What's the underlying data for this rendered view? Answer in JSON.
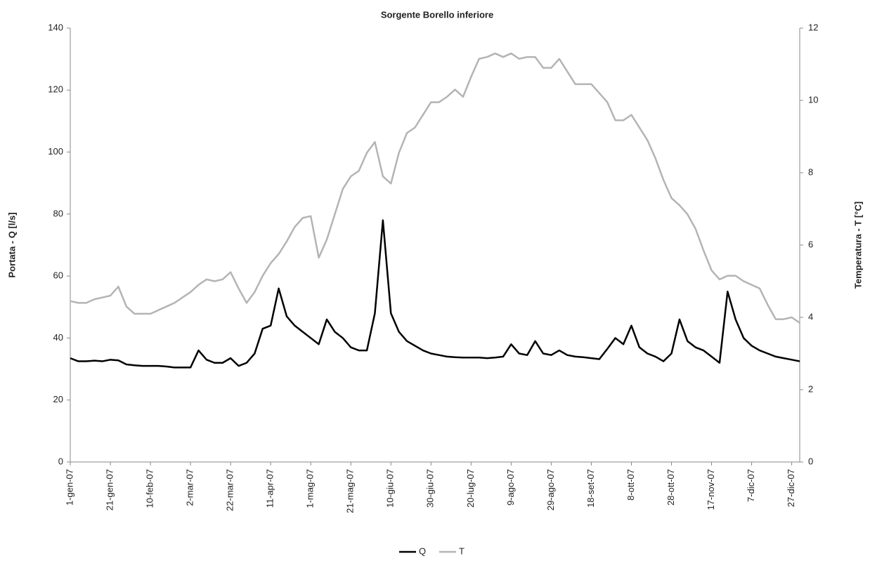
{
  "chart_data": {
    "type": "line",
    "title": "Sorgente Borello inferiore",
    "ylabel": "Portata - Q  [l/s]",
    "y2label": "Temperatura - T [°C]",
    "categories": [
      "1-gen-07",
      null,
      null,
      null,
      null,
      "21-gen-07",
      null,
      null,
      null,
      null,
      "10-feb-07",
      null,
      null,
      null,
      null,
      "2-mar-07",
      null,
      null,
      null,
      null,
      "22-mar-07",
      null,
      null,
      null,
      null,
      "11-apr-07",
      null,
      null,
      null,
      null,
      "1-mag-07",
      null,
      null,
      null,
      null,
      "21-mag-07",
      null,
      null,
      null,
      null,
      "10-giu-07",
      null,
      null,
      null,
      null,
      "30-giu-07",
      null,
      null,
      null,
      null,
      "20-lug-07",
      null,
      null,
      null,
      null,
      "9-ago-07",
      null,
      null,
      null,
      null,
      "29-ago-07",
      null,
      null,
      null,
      null,
      "18-set-07",
      null,
      null,
      null,
      null,
      "8-ott-07",
      null,
      null,
      null,
      null,
      "28-ott-07",
      null,
      null,
      null,
      null,
      "17-nov-07",
      null,
      null,
      null,
      null,
      "7-dic-07",
      null,
      null,
      null,
      null,
      "27-dic-07",
      null
    ],
    "series": [
      {
        "name": "Q",
        "color": "#000000",
        "axis": "y",
        "values": [
          33.5,
          32.5,
          32.5,
          32.7,
          32.5,
          33,
          32.8,
          31.5,
          31.2,
          31,
          31,
          31,
          30.8,
          30.5,
          30.5,
          30.5,
          36,
          33,
          32,
          32,
          33.5,
          31,
          32,
          35,
          43,
          44,
          56,
          47,
          44,
          42,
          40,
          38,
          46,
          42,
          40,
          37,
          36,
          36,
          48,
          78,
          48,
          42,
          39,
          37.5,
          36,
          35,
          34.5,
          34,
          33.8,
          33.7,
          33.7,
          33.7,
          33.5,
          33.7,
          34,
          38,
          35,
          34.5,
          39,
          35,
          34.5,
          36,
          34.5,
          34,
          33.8,
          33.5,
          33.2,
          36.5,
          40,
          38,
          44,
          37,
          35,
          34,
          32.5,
          35,
          46,
          39,
          37,
          36,
          34,
          32,
          55,
          46,
          40,
          37.5,
          36,
          35,
          34,
          33.5,
          33,
          32.5
        ]
      },
      {
        "name": "T",
        "color": "#b4b4b4",
        "axis": "y2",
        "values": [
          4.45,
          4.4,
          4.4,
          4.5,
          4.55,
          4.6,
          4.85,
          4.3,
          4.1,
          4.1,
          4.1,
          4.2,
          4.3,
          4.4,
          4.55,
          4.7,
          4.9,
          5.05,
          5.0,
          5.05,
          5.25,
          4.8,
          4.4,
          4.7,
          5.15,
          5.5,
          5.75,
          6.1,
          6.5,
          6.75,
          6.8,
          5.65,
          6.15,
          6.85,
          7.55,
          7.9,
          8.05,
          8.55,
          8.85,
          7.9,
          7.7,
          8.55,
          9.1,
          9.25,
          9.6,
          9.95,
          9.95,
          10.1,
          10.3,
          10.1,
          10.65,
          11.15,
          11.2,
          11.3,
          11.2,
          11.3,
          11.15,
          11.2,
          11.2,
          10.9,
          10.9,
          11.15,
          10.8,
          10.45,
          10.45,
          10.45,
          10.2,
          9.95,
          9.45,
          9.45,
          9.6,
          9.25,
          8.9,
          8.4,
          7.8,
          7.3,
          7.1,
          6.85,
          6.45,
          5.85,
          5.3,
          5.05,
          5.15,
          5.15,
          5.0,
          4.9,
          4.8,
          4.35,
          3.95,
          3.95,
          4.0,
          3.85
        ]
      }
    ],
    "ylim": [
      0,
      140
    ],
    "yticks": [
      0,
      20,
      40,
      60,
      80,
      100,
      120,
      140
    ],
    "y2lim": [
      0,
      12
    ],
    "y2ticks": [
      0,
      2,
      4,
      6,
      8,
      10,
      12
    ],
    "grid": false,
    "legend": "bottom"
  }
}
